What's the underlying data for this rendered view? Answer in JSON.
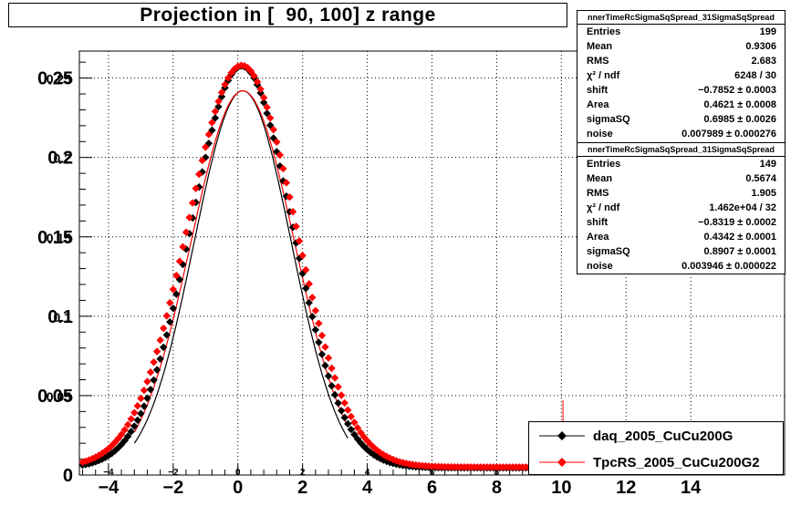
{
  "title": "Projection in [  90, 100] z range",
  "chart_data": {
    "type": "scatter",
    "xlim": [
      -4.9,
      16.9
    ],
    "ylim": [
      0,
      0.267
    ],
    "grid": true,
    "legend_position": "bottom-right",
    "x_ticks": [
      -4,
      -2,
      0,
      2,
      4,
      6,
      8,
      10,
      12,
      14
    ],
    "x_tick_labels": [
      "−4",
      "−2",
      "0",
      "2",
      "4",
      "6",
      "8",
      "10",
      "12",
      "14"
    ],
    "inner_x_tick_labels": [
      "−4",
      "−2",
      "0",
      "2",
      "4",
      "6",
      "8",
      "10",
      "12",
      "14"
    ],
    "y_ticks": [
      0,
      0.05,
      0.1,
      0.15,
      0.2,
      0.25
    ],
    "y_tick_labels": [
      "0",
      "0.05",
      "0.1",
      "0.15",
      "0.2",
      "0.25"
    ],
    "y_tick_labels_overlay": [
      "0",
      "0.05",
      "0.1",
      "0.15",
      "0.2",
      "0.25"
    ],
    "series": [
      {
        "name": "daq_2005_CuCu200G",
        "color": "#000000",
        "mean": 0.12,
        "sigma": 1.56,
        "amplitude": 0.253,
        "noise": 0.0045,
        "xmin": -4.8,
        "xmax": 9.2,
        "step": 0.1,
        "fit": {
          "shift": 0.15,
          "sigma": 1.5,
          "amplitude": 0.242
        }
      },
      {
        "name": "TpcRS_2005_CuCu200G2",
        "color": "#ff0000",
        "mean": 0.12,
        "sigma": 1.66,
        "amplitude": 0.253,
        "noise": 0.005,
        "xmin": -4.8,
        "xmax": 9.2,
        "step": 0.1,
        "fit": {
          "shift": 0.15,
          "sigma": 1.6,
          "amplitude": 0.242
        }
      }
    ],
    "annotation_line": {
      "x": 10.05,
      "y0": 0,
      "y1": 0.047,
      "color": "#ff0000"
    }
  },
  "stats": [
    {
      "name": "nnerTimeRcSigmaSqSpread_31SigmaSqSpread",
      "rows": [
        {
          "label": "Entries",
          "value": "199"
        },
        {
          "label": "Mean",
          "value": "0.9306"
        },
        {
          "label": "RMS",
          "value": "2.683"
        },
        {
          "label": "χ² / ndf",
          "value": "6248 / 30"
        },
        {
          "label": "shift",
          "value": "−0.7852 ± 0.0003"
        },
        {
          "label": "Area",
          "value": "0.4621 ± 0.0008"
        },
        {
          "label": "sigmaSQ",
          "value": "0.6985 ± 0.0026"
        },
        {
          "label": "noise",
          "value": "0.007989 ± 0.000276"
        }
      ]
    },
    {
      "name": "nnerTimeRcSigmaSqSpread_31SigmaSqSpread",
      "rows": [
        {
          "label": "Entries",
          "value": "149"
        },
        {
          "label": "Mean",
          "value": "0.5674"
        },
        {
          "label": "RMS",
          "value": "1.905"
        },
        {
          "label": "χ² / ndf",
          "value": "1.462e+04 / 32"
        },
        {
          "label": "shift",
          "value": "−0.8319 ± 0.0002"
        },
        {
          "label": "Area",
          "value": "0.4342 ± 0.0001"
        },
        {
          "label": "sigmaSQ",
          "value": "0.8907 ± 0.0001"
        },
        {
          "label": "noise",
          "value": "0.003946 ± 0.000022"
        }
      ]
    }
  ],
  "legend": [
    {
      "label": "daq_2005_CuCu200G",
      "color": "#000000"
    },
    {
      "label": "TpcRS_2005_CuCu200G2",
      "color": "#ff0000"
    }
  ]
}
